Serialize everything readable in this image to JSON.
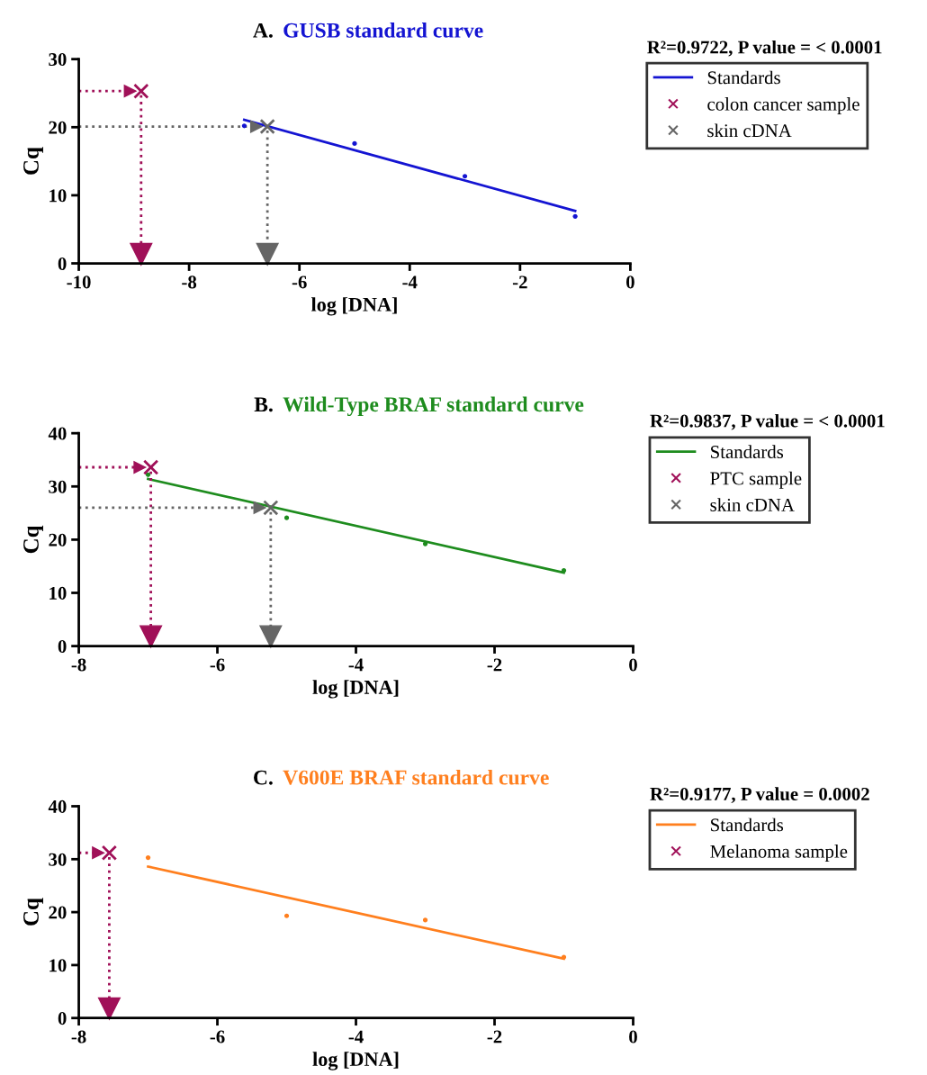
{
  "chart_data": [
    {
      "type": "scatter",
      "title": "GUSB standard curve",
      "xlabel": "log [DNA]",
      "ylabel": "Cq",
      "xlim": [
        -10,
        0
      ],
      "ylim": [
        0,
        30
      ],
      "xticks": [
        -10,
        -8,
        -6,
        -4,
        -2,
        0
      ],
      "yticks": [
        0,
        10,
        20,
        30
      ],
      "grid": false,
      "legend": "right",
      "annotations": [
        "A.",
        "R²=0.9722, P value = < 0.0001"
      ],
      "series": [
        {
          "type": "scatter",
          "marker": "circle",
          "color": "#1414d2",
          "x": [
            -7,
            -5,
            -3,
            -1
          ],
          "values": [
            20.2,
            17.6,
            12.8,
            6.9
          ]
        },
        {
          "type": "line",
          "name": "Standards",
          "color": "#1414d2",
          "line_style": "solid",
          "x": [
            -7,
            -1
          ],
          "values": [
            21.1,
            7.7
          ]
        },
        {
          "type": "scatter",
          "marker": "cross",
          "name": "colon cancer sample",
          "color": "#a01058",
          "x": [
            -8.87
          ],
          "values": [
            25.3
          ]
        },
        {
          "type": "scatter",
          "marker": "cross",
          "name": "skin cDNA",
          "color": "#666666",
          "x": [
            -6.58
          ],
          "values": [
            20.1
          ]
        }
      ]
    },
    {
      "type": "scatter",
      "title": "Wild-Type BRAF standard curve",
      "xlabel": "log [DNA]",
      "ylabel": "Cq",
      "xlim": [
        -8,
        0
      ],
      "ylim": [
        0,
        40
      ],
      "xticks": [
        -8,
        -6,
        -4,
        -2,
        0
      ],
      "yticks": [
        0,
        10,
        20,
        30,
        40
      ],
      "grid": false,
      "legend": "right",
      "annotations": [
        "B.",
        "R²=0.9837, P value = < 0.0001"
      ],
      "series": [
        {
          "type": "scatter",
          "marker": "circle",
          "color": "#1e8c1e",
          "x": [
            -7,
            -5,
            -3,
            -1
          ],
          "values": [
            32.2,
            24.1,
            19.2,
            14.2
          ]
        },
        {
          "type": "line",
          "name": "Standards",
          "color": "#1e8c1e",
          "line_style": "solid",
          "x": [
            -7,
            -1
          ],
          "values": [
            31.4,
            13.8
          ]
        },
        {
          "type": "scatter",
          "marker": "cross",
          "name": "PTC sample",
          "color": "#a01058",
          "x": [
            -6.96
          ],
          "values": [
            33.6
          ]
        },
        {
          "type": "scatter",
          "marker": "cross",
          "name": "skin cDNA",
          "color": "#666666",
          "x": [
            -5.23
          ],
          "values": [
            26.0
          ]
        }
      ]
    },
    {
      "type": "scatter",
      "title": "V600E BRAF standard curve",
      "xlabel": "log [DNA]",
      "ylabel": "Cq",
      "xlim": [
        -8,
        0
      ],
      "ylim": [
        0,
        40
      ],
      "xticks": [
        -8,
        -6,
        -4,
        -2,
        0
      ],
      "yticks": [
        0,
        10,
        20,
        30,
        40
      ],
      "grid": false,
      "legend": "right",
      "annotations": [
        "C.",
        "R²=0.9177, P value = 0.0002"
      ],
      "series": [
        {
          "type": "scatter",
          "marker": "circle",
          "color": "#ff7f1e",
          "x": [
            -7,
            -5,
            -3,
            -1
          ],
          "values": [
            30.3,
            19.3,
            18.5,
            11.5
          ]
        },
        {
          "type": "line",
          "name": "Standards",
          "color": "#ff7f1e",
          "line_style": "solid",
          "x": [
            -7,
            -1
          ],
          "values": [
            28.6,
            11.2
          ]
        },
        {
          "type": "scatter",
          "marker": "cross",
          "name": "Melanoma sample",
          "color": "#a01058",
          "x": [
            -7.56
          ],
          "values": [
            31.2
          ]
        }
      ]
    }
  ]
}
